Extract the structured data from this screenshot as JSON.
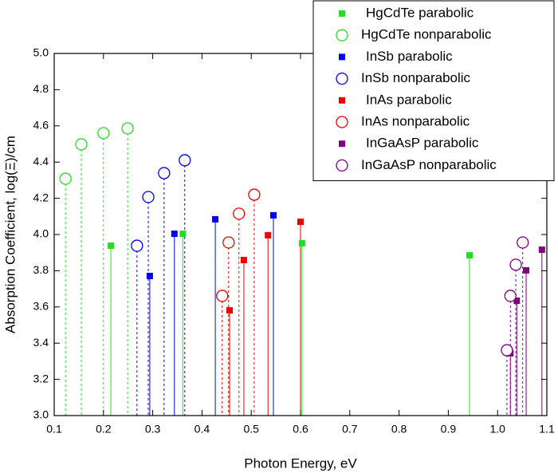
{
  "chart_data": {
    "type": "scatter",
    "xlabel": "Photon Energy, eV",
    "ylabel": "Absorption Coefficient, log(Ξ)/cm",
    "xlim": [
      0.1,
      1.1
    ],
    "xticks": [
      0.1,
      0.2,
      0.3,
      0.4,
      0.5,
      0.6,
      0.7,
      0.8,
      0.9,
      {
        "value": 1.0,
        "label": "1.0"
      },
      1.1
    ],
    "ylim": [
      3.0,
      5.0
    ],
    "yticks": [
      {
        "value": 3.0,
        "label": "3.0"
      },
      3.2,
      3.4,
      3.6,
      3.8,
      {
        "value": 4.0,
        "label": "4.0"
      },
      4.2,
      4.4,
      4.6,
      4.8,
      {
        "value": 5.0,
        "label": "5.0"
      }
    ],
    "drop_lines": true,
    "legend": "upper right",
    "series": [
      {
        "name": "HgCdTe parabolic",
        "color": "#22dd22",
        "marker": "square",
        "line_style": "solid",
        "x": [
          0.215,
          0.361,
          0.603,
          0.943
        ],
        "values": [
          3.938,
          4.004,
          3.952,
          3.885
        ]
      },
      {
        "name": "HgCdTe nonparabolic",
        "color": "#22dd22",
        "marker": "circle",
        "line_style": "dashed",
        "x": [
          0.123,
          0.155,
          0.2,
          0.249
        ],
        "values": [
          4.308,
          4.498,
          4.56,
          4.586
        ]
      },
      {
        "name": "InSb parabolic",
        "color": "#0000ee",
        "marker": "square",
        "line_style": "solid",
        "x": [
          0.294,
          0.344,
          0.427,
          0.545
        ],
        "values": [
          3.771,
          4.004,
          4.084,
          4.106
        ]
      },
      {
        "name": "InSb nonparabolic",
        "color": "#0000ee",
        "marker": "circle",
        "line_style": "dashed",
        "x": [
          0.268,
          0.291,
          0.323,
          0.365
        ],
        "values": [
          3.938,
          4.207,
          4.339,
          4.41
        ]
      },
      {
        "name": "InAs parabolic",
        "color": "#ee0000",
        "marker": "square",
        "line_style": "solid",
        "x": [
          0.456,
          0.485,
          0.534,
          0.6
        ],
        "values": [
          3.581,
          3.859,
          3.996,
          4.07
        ]
      },
      {
        "name": "InAs nonparabolic",
        "color": "#ee0000",
        "marker": "circle",
        "line_style": "dashed",
        "x": [
          0.441,
          0.454,
          0.475,
          0.506
        ],
        "values": [
          3.661,
          3.956,
          4.115,
          4.22
        ]
      },
      {
        "name": "InGaAsP parabolic",
        "color": "#800080",
        "marker": "square",
        "line_style": "solid",
        "x": [
          1.026,
          1.039,
          1.058,
          1.09
        ],
        "values": [
          3.344,
          3.634,
          3.802,
          3.916
        ]
      },
      {
        "name": "InGaAsP nonparabolic",
        "color": "#800080",
        "marker": "circle",
        "line_style": "dashed",
        "x": [
          1.019,
          1.026,
          1.037,
          1.051
        ],
        "values": [
          3.361,
          3.661,
          3.833,
          3.956
        ]
      }
    ]
  }
}
